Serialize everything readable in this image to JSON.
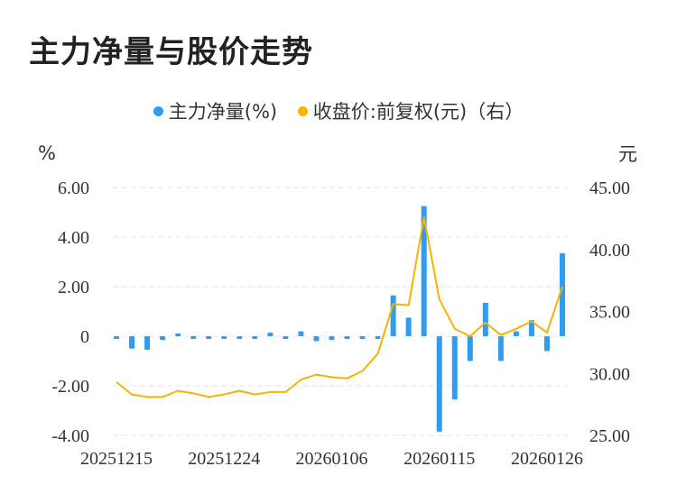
{
  "chart_data": {
    "type": "bar+line",
    "title": "主力净量与股价走势",
    "legend": [
      {
        "name": "主力净量(%)",
        "color": "#2f9cf0"
      },
      {
        "name": "收盘价:前复权(元)（右）",
        "color": "#f5b400"
      }
    ],
    "y_left": {
      "unit": "%",
      "min": -4,
      "max": 6,
      "ticks": [
        "6.00",
        "4.00",
        "2.00",
        "0",
        "-2.00",
        "-4.00"
      ]
    },
    "y_right": {
      "unit": "元",
      "min": 25,
      "max": 45,
      "ticks": [
        "45.00",
        "40.00",
        "35.00",
        "30.00",
        "25.00"
      ]
    },
    "x_labels": [
      "20251215",
      "20251224",
      "20260106",
      "20260115",
      "20260126"
    ],
    "x_label_positions": [
      0,
      7,
      14,
      21,
      28
    ],
    "series": [
      {
        "name": "主力净量(%)",
        "type": "bar",
        "values": [
          -0.1,
          -0.5,
          -0.55,
          -0.15,
          0.05,
          -0.1,
          -0.1,
          -0.1,
          -0.1,
          -0.05,
          0.15,
          -0.05,
          0.2,
          -0.2,
          -0.15,
          -0.05,
          -0.1,
          -0.1,
          1.65,
          0.75,
          5.25,
          -3.85,
          -2.55,
          -1.0,
          1.35,
          -1.0,
          0.2,
          0.65,
          -0.6,
          3.35
        ]
      },
      {
        "name": "收盘价:前复权(元)（右）",
        "type": "line",
        "values": [
          29.3,
          28.3,
          28.1,
          28.1,
          28.6,
          28.4,
          28.1,
          28.3,
          28.6,
          28.3,
          28.5,
          28.5,
          29.5,
          29.9,
          29.7,
          29.6,
          30.2,
          31.6,
          35.6,
          35.5,
          42.6,
          36.0,
          33.6,
          33.0,
          34.1,
          33.1,
          33.6,
          34.2,
          33.3,
          37.0
        ]
      }
    ]
  }
}
